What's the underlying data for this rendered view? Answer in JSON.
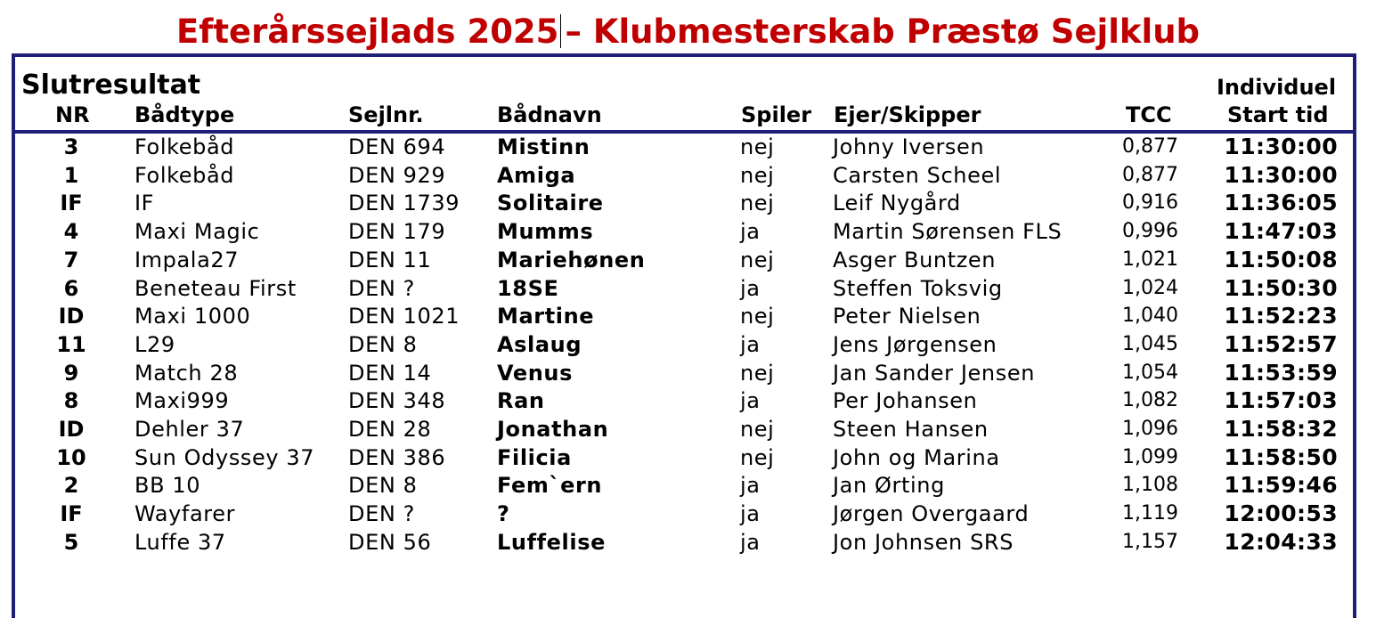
{
  "title_part1": "Efterårssejlads 2025",
  "title_part2": "– Klubmesterskab Præstø Sejlklub",
  "section_title": "Slutresultat",
  "headers": {
    "nr": "NR",
    "boat_type": "Bådtype",
    "sail_no": "Sejlnr.",
    "boat_name": "Bådnavn",
    "spinnaker": "Spiler",
    "owner": "Ejer/Skipper",
    "tcc": "TCC",
    "start_line1": "Individuel",
    "start_line2": "Start tid"
  },
  "rows": [
    {
      "nr": "3",
      "type": "Folkebåd",
      "sail": "DEN 694",
      "name": "Mistinn",
      "spin": "nej",
      "owner": "Johny Iversen",
      "tcc": "0,877",
      "time": "11:30:00"
    },
    {
      "nr": "1",
      "type": "Folkebåd",
      "sail": "DEN 929",
      "name": "Amiga",
      "spin": "nej",
      "owner": "Carsten Scheel",
      "tcc": "0,877",
      "time": "11:30:00"
    },
    {
      "nr": "IF",
      "type": "IF",
      "sail": "DEN 1739",
      "name": "Solitaire",
      "spin": "nej",
      "owner": "Leif Nygård",
      "tcc": "0,916",
      "time": "11:36:05"
    },
    {
      "nr": "4",
      "type": "Maxi Magic",
      "sail": "DEN 179",
      "name": "Mumms",
      "spin": "ja",
      "owner": "Martin Sørensen FLS",
      "tcc": "0,996",
      "time": "11:47:03"
    },
    {
      "nr": "7",
      "type": "Impala27",
      "sail": "DEN 11",
      "name": "Mariehønen",
      "spin": "nej",
      "owner": "Asger Buntzen",
      "tcc": "1,021",
      "time": "11:50:08"
    },
    {
      "nr": "6",
      "type": "Beneteau First",
      "sail": "DEN ?",
      "name": "18SE",
      "spin": "ja",
      "owner": "Steffen Toksvig",
      "tcc": "1,024",
      "time": "11:50:30"
    },
    {
      "nr": "ID",
      "type": "Maxi 1000",
      "sail": "DEN 1021",
      "name": "Martine",
      "spin": "nej",
      "owner": "Peter Nielsen",
      "tcc": "1,040",
      "time": "11:52:23"
    },
    {
      "nr": "11",
      "type": "L29",
      "sail": "DEN 8",
      "name": "Aslaug",
      "spin": "ja",
      "owner": "Jens Jørgensen",
      "tcc": "1,045",
      "time": "11:52:57"
    },
    {
      "nr": "9",
      "type": "Match 28",
      "sail": "DEN 14",
      "name": "Venus",
      "spin": "nej",
      "owner": "Jan Sander Jensen",
      "tcc": "1,054",
      "time": "11:53:59"
    },
    {
      "nr": "8",
      "type": "Maxi999",
      "sail": "DEN 348",
      "name": "Ran",
      "spin": "ja",
      "owner": "Per Johansen",
      "tcc": "1,082",
      "time": "11:57:03"
    },
    {
      "nr": "ID",
      "type": "Dehler 37",
      "sail": "DEN 28",
      "name": "Jonathan",
      "spin": "nej",
      "owner": "Steen Hansen",
      "tcc": "1,096",
      "time": "11:58:32"
    },
    {
      "nr": "10",
      "type": "Sun Odyssey 37",
      "sail": "DEN 386",
      "name": "Filicia",
      "spin": "nej",
      "owner": "John og Marina",
      "tcc": "1,099",
      "time": "11:58:50"
    },
    {
      "nr": "2",
      "type": "BB 10",
      "sail": "DEN 8",
      "name": "Fem`ern",
      "spin": "ja",
      "owner": "Jan Ørting",
      "tcc": "1,108",
      "time": "11:59:46"
    },
    {
      "nr": "IF",
      "type": "Wayfarer",
      "sail": "DEN ?",
      "name": "?",
      "spin": "ja",
      "owner": "Jørgen Overgaard",
      "tcc": "1,119",
      "time": "12:00:53"
    },
    {
      "nr": "5",
      "type": "Luffe 37",
      "sail": "DEN 56",
      "name": "Luffelise",
      "spin": "ja",
      "owner": "Jon Johnsen SRS",
      "tcc": "1,157",
      "time": "12:04:33"
    }
  ],
  "colors": {
    "title": "#c00000",
    "frame": "#1f1f7a",
    "text": "#000000"
  }
}
